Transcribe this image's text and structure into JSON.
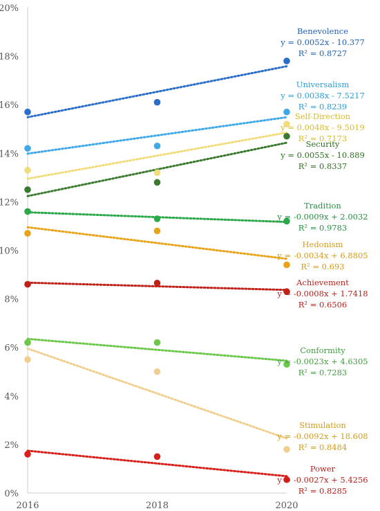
{
  "chart_data": {
    "type": "scatter",
    "x": [
      2016,
      2018,
      2020
    ],
    "xlim": [
      2016,
      2020
    ],
    "ylim": [
      0,
      20
    ],
    "y_ticks": [
      "0%",
      "2%",
      "4%",
      "6%",
      "8%",
      "10%",
      "12%",
      "14%",
      "16%",
      "18%",
      "20%"
    ],
    "x_ticks": [
      "2016",
      "2018",
      "2020"
    ],
    "trendlines": "linear, dotted",
    "series": [
      {
        "name": "Benevolence",
        "color": "#2a6ec9",
        "values": [
          15.7,
          16.1,
          17.8
        ],
        "equation": "y = 0.0052x - 10.377",
        "r2": "R² = 0.8727"
      },
      {
        "name": "Universalism",
        "color": "#3fa8e8",
        "values": [
          14.2,
          14.3,
          15.7
        ],
        "equation": "y = 0.0038x - 7.5217",
        "r2": "R² = 0.8239"
      },
      {
        "name": "Self-Direction",
        "color": "#f0dc7a",
        "values": [
          13.3,
          13.2,
          15.2
        ],
        "equation": "y = 0.0048x - 9.5019",
        "r2": "R² = 0.7173"
      },
      {
        "name": "Security",
        "color": "#3a7a2e",
        "values": [
          12.5,
          12.8,
          14.7
        ],
        "equation": "y = 0.0055x - 10.889",
        "r2": "R² = 0.8337"
      },
      {
        "name": "Tradition",
        "color": "#2aa84a",
        "values": [
          11.6,
          11.3,
          11.2
        ],
        "equation": "y = -0.0009x + 2.0032",
        "r2": "R² = 0.9783"
      },
      {
        "name": "Hedonism",
        "color": "#e8a317",
        "values": [
          10.7,
          10.8,
          9.4
        ],
        "equation": "y = -0.0034x + 6.8805",
        "r2": "R² = 0.693"
      },
      {
        "name": "Achievement",
        "color": "#c0221a",
        "values": [
          8.6,
          8.65,
          8.3
        ],
        "equation": "y = -0.0008x + 1.7418",
        "r2": "R² = 0.6506"
      },
      {
        "name": "Conformity",
        "color": "#6cc84a",
        "values": [
          6.2,
          6.2,
          5.3
        ],
        "equation": "y = -0.0023x + 4.6305",
        "r2": "R² = 0.7283"
      },
      {
        "name": "Stimulation",
        "color": "#f0cf8e",
        "values": [
          5.5,
          5.0,
          1.8
        ],
        "equation": "y = -0.0092x + 18.608",
        "r2": "R² = 0.8484"
      },
      {
        "name": "Power",
        "color": "#d8201a",
        "values": [
          1.6,
          1.5,
          0.55
        ],
        "equation": "y = -0.0027x + 5.4256",
        "r2": "R² = 0.8285"
      }
    ],
    "label_colors": {
      "Benevolence": "#1f5fb5",
      "Universalism": "#2b9bd8",
      "Self-Direction": "#d8b92a",
      "Security": "#2f6e22",
      "Tradition": "#23913f",
      "Hedonism": "#d89a12",
      "Achievement": "#b81f17",
      "Conformity": "#3e9e3e",
      "Stimulation": "#d19b18",
      "Power": "#b81f17"
    }
  }
}
